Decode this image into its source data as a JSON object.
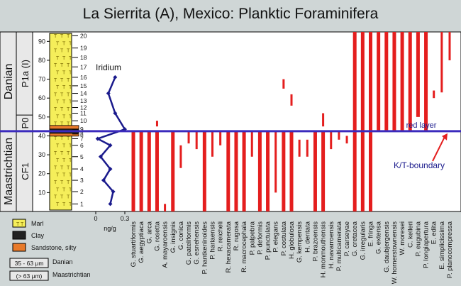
{
  "title": "La Sierrita (A), Mexico: Planktic Foraminifera",
  "colors": {
    "background": "#cfd6d6",
    "plot_background": "#ffffff",
    "range_bars": "#e41e1e",
    "iridium_curve": "#1a1a8c",
    "boundary_line": "#3b2bbd",
    "marl": "#f5ee5a",
    "sandstone": "#e87a2a"
  },
  "stages": [
    {
      "label": "Danian",
      "range": [
        42.5,
        95
      ]
    },
    {
      "label": "Maastrichtian",
      "range": [
        0,
        42.5
      ]
    }
  ],
  "zones": [
    {
      "label": "P1a (I)",
      "range": [
        51,
        95
      ]
    },
    {
      "label": "P0",
      "range": [
        42.5,
        51
      ]
    },
    {
      "label": "CF1",
      "range": [
        0,
        42.5
      ]
    }
  ],
  "sample_numbers": [
    "1",
    "2",
    "3",
    "4",
    "5",
    "6",
    "7",
    "8",
    "9",
    "10",
    "11",
    "12",
    "13",
    "14",
    "15",
    "16",
    "17",
    "18",
    "19",
    "20"
  ],
  "sample_depths": [
    4,
    10.5,
    16.5,
    22.5,
    29,
    35,
    38.5,
    41,
    43.5,
    48,
    52,
    55,
    58.5,
    62.5,
    66.5,
    71,
    76.5,
    81.5,
    86.5,
    93
  ],
  "depth_axis": {
    "ticks": [
      "10",
      "20",
      "30",
      "40",
      "50",
      "60",
      "70",
      "80",
      "90"
    ],
    "tick_values": [
      10,
      20,
      30,
      40,
      50,
      60,
      70,
      80,
      90
    ],
    "range": [
      0,
      95
    ]
  },
  "iridium": {
    "label": "Iridium",
    "unit": "ng/g",
    "ticks": [
      "0",
      "0.3"
    ],
    "tick_values": [
      0,
      0.3
    ],
    "points": [
      [
        0.15,
        4
      ],
      [
        0.18,
        10.5
      ],
      [
        0.08,
        16.5
      ],
      [
        0.15,
        22.5
      ],
      [
        0.05,
        29
      ],
      [
        0.15,
        35
      ],
      [
        0.02,
        38.5
      ],
      [
        0.3,
        43.5
      ],
      [
        0.2,
        52
      ],
      [
        0.13,
        62.5
      ],
      [
        0.2,
        71
      ]
    ]
  },
  "boundary_labels": {
    "red_layer": "red layer",
    "kt": "K/T-boundary"
  },
  "legend": [
    {
      "label": "Marl",
      "kind": "marl"
    },
    {
      "label": "Clay",
      "kind": "clay"
    },
    {
      "label": "Sandstone, silty",
      "kind": "sandstone"
    }
  ],
  "fraction_legend": [
    {
      "box": "35 - 63 μm",
      "text": "Danian"
    },
    {
      "box": "(> 63 μm)",
      "text": "Maastrichtian"
    }
  ],
  "chart_data": {
    "type": "bar",
    "boundary_depth": 42.5,
    "species": [
      {
        "name": "G. stuartiformis",
        "ranges": [
          [
            0,
            42.5
          ]
        ]
      },
      {
        "name": "G. aegyptiaca",
        "ranges": [
          [
            0,
            42.5
          ]
        ]
      },
      {
        "name": "G. arca",
        "ranges": [
          [
            0,
            42.5
          ]
        ]
      },
      {
        "name": "G. rosetta",
        "ranges": [
          [
            0,
            42.5
          ],
          [
            45,
            48
          ]
        ]
      },
      {
        "name": "A. mayaroensis",
        "ranges": [
          [
            0,
            4
          ]
        ]
      },
      {
        "name": "G. insignis",
        "ranges": [
          [
            0,
            42.5
          ]
        ]
      },
      {
        "name": "G. conica",
        "ranges": [
          [
            23,
            35
          ]
        ]
      },
      {
        "name": "G. pateliformis",
        "ranges": [
          [
            36,
            42.5
          ]
        ]
      },
      {
        "name": "G. esnehensis",
        "ranges": [
          [
            33,
            42.5
          ]
        ]
      },
      {
        "name": "P. hantkeninoides",
        "ranges": [
          [
            0,
            42.5
          ]
        ]
      },
      {
        "name": "P. hariaensis",
        "ranges": [
          [
            29,
            42.5
          ]
        ]
      },
      {
        "name": "R. reicheli",
        "ranges": [
          [
            35,
            42.5
          ]
        ]
      },
      {
        "name": "R. hexacamerata",
        "ranges": [
          [
            0,
            42.5
          ]
        ]
      },
      {
        "name": "R. rugosa",
        "ranges": [
          [
            0,
            42.5
          ]
        ]
      },
      {
        "name": "R. macrocephala",
        "ranges": [
          [
            0,
            42.5
          ]
        ]
      },
      {
        "name": "P. palpebra",
        "ranges": [
          [
            29,
            42.5
          ]
        ]
      },
      {
        "name": "P. deformis",
        "ranges": [
          [
            0,
            42.5
          ]
        ]
      },
      {
        "name": "P. punctulata",
        "ranges": [
          [
            0,
            42.5
          ]
        ]
      },
      {
        "name": "P. elegans",
        "ranges": [
          [
            10,
            42.5
          ]
        ]
      },
      {
        "name": "P. costulata",
        "ranges": [
          [
            0,
            42.5
          ],
          [
            65,
            70
          ]
        ]
      },
      {
        "name": "H. globulosa",
        "ranges": [
          [
            0,
            42.5
          ],
          [
            56,
            62
          ]
        ]
      },
      {
        "name": "G. kempensis",
        "ranges": [
          [
            29,
            38
          ]
        ]
      },
      {
        "name": "H. dentata",
        "ranges": [
          [
            29,
            38
          ]
        ]
      },
      {
        "name": "P. brazoensis",
        "ranges": [
          [
            0,
            42.5
          ]
        ]
      },
      {
        "name": "H. monmouthensis",
        "ranges": [
          [
            0,
            42.5
          ],
          [
            45,
            52
          ]
        ]
      },
      {
        "name": "H. navarroensis",
        "ranges": [
          [
            33,
            42.5
          ]
        ]
      },
      {
        "name": "P. multicamerata",
        "ranges": [
          [
            38,
            42.5
          ]
        ]
      },
      {
        "name": "P. carseyae",
        "ranges": [
          [
            36,
            40
          ]
        ]
      },
      {
        "name": "G. cretacea",
        "ranges": [
          [
            0,
            95
          ]
        ]
      },
      {
        "name": "G. irregularis",
        "ranges": [
          [
            0,
            95
          ]
        ]
      },
      {
        "name": "E. fringa",
        "ranges": [
          [
            0,
            42.5
          ],
          [
            43,
            95
          ]
        ]
      },
      {
        "name": "G. extensa",
        "ranges": [
          [
            43,
            95
          ]
        ]
      },
      {
        "name": "G. daubjergensis",
        "ranges": [
          [
            43,
            95
          ]
        ]
      },
      {
        "name": "W. hornerstownensis",
        "ranges": [
          [
            43,
            95
          ]
        ]
      },
      {
        "name": "W. moresei",
        "ranges": [
          [
            43,
            95
          ]
        ]
      },
      {
        "name": "C. kelleri",
        "ranges": [
          [
            43,
            95
          ]
        ]
      },
      {
        "name": "P. eugubina",
        "ranges": [
          [
            50,
            95
          ]
        ]
      },
      {
        "name": "P. longiapertura",
        "ranges": [
          [
            43,
            95
          ]
        ]
      },
      {
        "name": "E. edita",
        "ranges": [
          [
            60,
            64
          ]
        ]
      },
      {
        "name": "E. simplicissima",
        "ranges": [
          [
            63,
            95
          ]
        ]
      },
      {
        "name": "P. planocompressa",
        "ranges": [
          [
            80,
            95
          ]
        ]
      }
    ]
  }
}
